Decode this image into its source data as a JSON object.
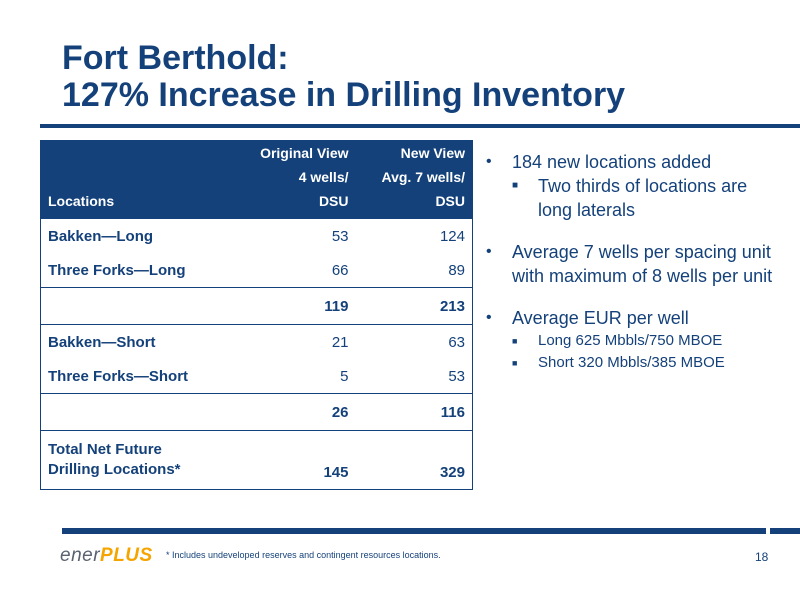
{
  "title": {
    "line1": "Fort Berthold:",
    "line2": "127% Increase in Drilling Inventory"
  },
  "table": {
    "headers": {
      "locations": "Locations",
      "original_l1": "Original View",
      "original_l2": "4 wells/",
      "original_l3": "DSU",
      "new_l1": "New View",
      "new_l2": "Avg. 7 wells/",
      "new_l3": "DSU"
    },
    "rows": [
      {
        "label": "Bakken—Long",
        "original": "53",
        "new": "124"
      },
      {
        "label": "Three Forks—Long",
        "original": "66",
        "new": "89"
      },
      {
        "label": "",
        "original": "119",
        "new": "213"
      },
      {
        "label": "Bakken—Short",
        "original": "21",
        "new": "63"
      },
      {
        "label": "Three Forks—Short",
        "original": "5",
        "new": "53"
      },
      {
        "label": "",
        "original": "26",
        "new": "116"
      }
    ],
    "total": {
      "label_l1": "Total Net Future",
      "label_l2": "Drilling Locations*",
      "original": "145",
      "new": "329"
    }
  },
  "bullets": {
    "b1": "184 new locations added",
    "b1_sub": "Two thirds of locations are long laterals",
    "b2": "Average 7 wells per spacing unit with maximum of 8 wells per unit",
    "b3": "Average EUR per well",
    "b3_sub1": "Long 625 Mbbls/750 MBOE",
    "b3_sub2": "Short 320 Mbbls/385 MBOE"
  },
  "footer": {
    "logo_part1": "ener",
    "logo_part2": "PLUS",
    "footnote": "* Includes undeveloped reserves and contingent resources locations.",
    "page_number": "18"
  },
  "colors": {
    "brand_blue": "#14417a",
    "logo_orange": "#f5a400",
    "logo_gray": "#5a6270"
  }
}
